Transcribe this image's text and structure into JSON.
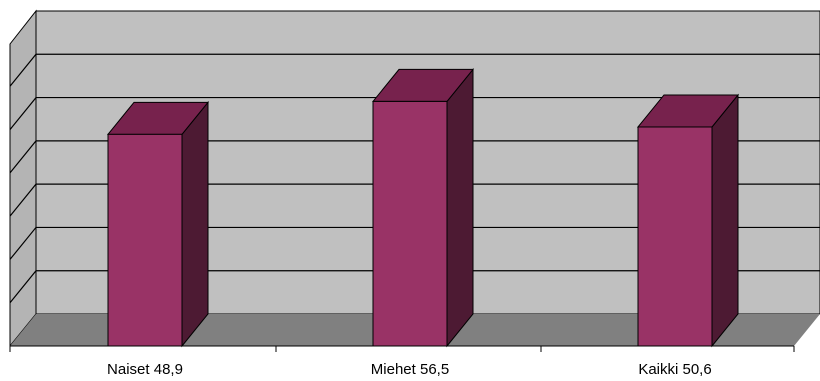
{
  "chart_data": {
    "type": "bar",
    "categories": [
      "Naiset 48,9",
      "Miehet 56,5",
      "Kaikki 50,6"
    ],
    "values": [
      48.9,
      56.5,
      50.6
    ],
    "title": "",
    "xlabel": "",
    "ylabel": "",
    "ylim": [
      0,
      70
    ],
    "grid": true,
    "three_d": true,
    "colors": {
      "bar_front": "#993366",
      "bar_top": "#77224d",
      "bar_side": "#4d1a33",
      "back_wall": "#c0c0c0",
      "side_wall": "#b4b4b4",
      "floor": "#808080",
      "gridline": "#000000"
    }
  }
}
